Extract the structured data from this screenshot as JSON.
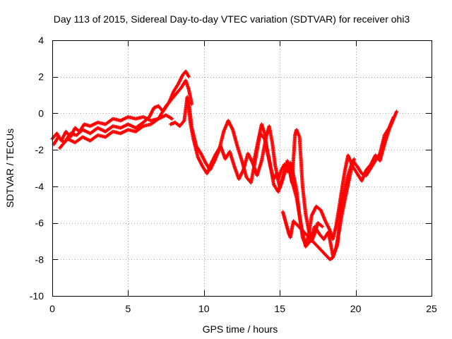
{
  "chart_data": {
    "type": "scatter",
    "title": "Day 113 of 2015, Sidereal Day-to-day VTEC variation (SDTVAR) for receiver ohi3",
    "xlabel": "GPS time / hours",
    "ylabel": "SDTVAR / TECUs",
    "xlim": [
      0,
      25
    ],
    "ylim": [
      -10,
      4
    ],
    "xticks": [
      0,
      5,
      10,
      15,
      20,
      25
    ],
    "yticks": [
      -10,
      -8,
      -6,
      -4,
      -2,
      0,
      2,
      4
    ],
    "grid": true,
    "marker": "plus",
    "color": "#ff0000",
    "tracks": [
      {
        "name": "track-1",
        "points": [
          [
            0.0,
            -1.4
          ],
          [
            0.3,
            -1.1
          ],
          [
            0.6,
            -1.5
          ],
          [
            0.9,
            -1.0
          ],
          [
            1.2,
            -1.3
          ],
          [
            1.5,
            -0.8
          ],
          [
            1.8,
            -1.0
          ],
          [
            2.1,
            -0.6
          ],
          [
            2.5,
            -0.7
          ],
          [
            3.0,
            -0.5
          ],
          [
            3.5,
            -0.6
          ],
          [
            4.0,
            -0.3
          ],
          [
            4.5,
            -0.4
          ],
          [
            5.0,
            -0.2
          ],
          [
            5.5,
            -0.3
          ],
          [
            6.0,
            -0.2
          ],
          [
            6.5,
            -0.4
          ],
          [
            7.0,
            -0.3
          ],
          [
            7.5,
            -0.1
          ],
          [
            7.9,
            -0.3
          ]
        ]
      },
      {
        "name": "track-2",
        "points": [
          [
            0.1,
            -1.7
          ],
          [
            0.4,
            -1.3
          ],
          [
            0.8,
            -1.6
          ],
          [
            1.2,
            -1.1
          ],
          [
            1.6,
            -1.2
          ],
          [
            2.0,
            -0.9
          ],
          [
            2.5,
            -1.1
          ],
          [
            3.0,
            -0.8
          ],
          [
            3.5,
            -1.0
          ],
          [
            4.0,
            -0.7
          ],
          [
            4.5,
            -0.8
          ],
          [
            5.0,
            -0.6
          ],
          [
            5.5,
            -0.8
          ],
          [
            6.0,
            -0.5
          ],
          [
            6.4,
            -0.2
          ],
          [
            6.7,
            0.3
          ],
          [
            7.0,
            0.4
          ],
          [
            7.3,
            0.1
          ],
          [
            7.7,
            0.6
          ],
          [
            8.0,
            1.2
          ],
          [
            8.3,
            1.6
          ],
          [
            8.6,
            2.1
          ],
          [
            8.8,
            2.3
          ],
          [
            9.0,
            2.0
          ]
        ]
      },
      {
        "name": "track-3",
        "points": [
          [
            0.5,
            -1.9
          ],
          [
            1.0,
            -1.4
          ],
          [
            1.5,
            -1.6
          ],
          [
            2.0,
            -1.3
          ],
          [
            2.5,
            -1.5
          ],
          [
            3.0,
            -1.2
          ],
          [
            3.5,
            -1.3
          ],
          [
            4.0,
            -1.0
          ],
          [
            4.5,
            -1.1
          ],
          [
            5.0,
            -0.9
          ],
          [
            5.5,
            -1.0
          ],
          [
            6.0,
            -0.7
          ],
          [
            6.5,
            -0.6
          ],
          [
            7.0,
            -0.3
          ],
          [
            7.5,
            0.4
          ],
          [
            8.0,
            0.9
          ],
          [
            8.5,
            1.4
          ],
          [
            8.8,
            1.8
          ],
          [
            9.0,
            1.3
          ],
          [
            9.2,
            0.5
          ]
        ]
      },
      {
        "name": "track-4",
        "points": [
          [
            7.8,
            -0.6
          ],
          [
            8.1,
            -0.5
          ],
          [
            8.4,
            -0.7
          ],
          [
            8.7,
            -0.4
          ],
          [
            8.9,
            0.9
          ],
          [
            9.1,
            -0.5
          ],
          [
            9.3,
            -1.4
          ],
          [
            9.6,
            -2.4
          ],
          [
            9.9,
            -2.9
          ],
          [
            10.2,
            -3.3
          ],
          [
            10.5,
            -2.7
          ],
          [
            10.8,
            -2.2
          ],
          [
            11.1,
            -1.8
          ],
          [
            11.4,
            -2.5
          ],
          [
            11.7,
            -2.1
          ],
          [
            12.0,
            -2.9
          ],
          [
            12.3,
            -3.6
          ],
          [
            12.6,
            -3.1
          ],
          [
            12.9,
            -2.2
          ],
          [
            13.2,
            -2.7
          ],
          [
            13.5,
            -3.4
          ],
          [
            13.8,
            -2.6
          ],
          [
            14.1,
            -1.3
          ],
          [
            14.3,
            -0.7
          ],
          [
            14.5,
            -1.6
          ],
          [
            14.7,
            -2.9
          ],
          [
            14.9,
            -3.6
          ],
          [
            15.1,
            -3.1
          ],
          [
            15.3,
            -2.8
          ],
          [
            15.5,
            -3.2
          ],
          [
            15.7,
            -2.7
          ],
          [
            15.9,
            -3.4
          ],
          [
            16.1,
            -4.2
          ],
          [
            16.3,
            -5.6
          ],
          [
            16.5,
            -6.8
          ],
          [
            16.7,
            -7.2
          ],
          [
            16.9,
            -6.7
          ],
          [
            17.1,
            -5.6
          ],
          [
            17.4,
            -5.1
          ],
          [
            17.7,
            -5.3
          ],
          [
            18.0,
            -5.9
          ],
          [
            18.3,
            -6.4
          ],
          [
            18.5,
            -6.9
          ],
          [
            18.7,
            -6.2
          ],
          [
            18.9,
            -5.2
          ],
          [
            19.1,
            -4.1
          ],
          [
            19.3,
            -3.1
          ],
          [
            19.5,
            -2.3
          ],
          [
            19.8,
            -2.9
          ],
          [
            20.1,
            -3.3
          ],
          [
            20.4,
            -3.7
          ],
          [
            20.7,
            -3.1
          ],
          [
            21.0,
            -2.8
          ],
          [
            21.3,
            -2.3
          ],
          [
            21.6,
            -2.6
          ],
          [
            21.9,
            -1.7
          ],
          [
            22.2,
            -0.9
          ],
          [
            22.5,
            -0.3
          ],
          [
            22.7,
            0.1
          ]
        ]
      },
      {
        "name": "track-5",
        "points": [
          [
            9.0,
            0.6
          ],
          [
            9.2,
            -0.8
          ],
          [
            9.5,
            -1.8
          ],
          [
            9.8,
            -2.2
          ],
          [
            10.1,
            -2.7
          ],
          [
            10.4,
            -3.1
          ],
          [
            10.7,
            -2.6
          ],
          [
            11.0,
            -2.0
          ],
          [
            11.3,
            -1.0
          ],
          [
            11.6,
            -0.4
          ],
          [
            11.9,
            -0.9
          ],
          [
            12.2,
            -1.8
          ],
          [
            12.5,
            -2.6
          ],
          [
            12.8,
            -3.5
          ],
          [
            13.1,
            -3.8
          ],
          [
            13.4,
            -2.5
          ],
          [
            13.7,
            -1.1
          ],
          [
            14.0,
            -1.4
          ],
          [
            14.3,
            -2.5
          ],
          [
            14.6,
            -3.9
          ],
          [
            14.9,
            -4.3
          ],
          [
            15.2,
            -3.5
          ],
          [
            15.5,
            -2.6
          ],
          [
            15.8,
            -3.7
          ],
          [
            16.1,
            -4.6
          ],
          [
            16.4,
            -6.1
          ],
          [
            16.7,
            -7.3
          ],
          [
            17.0,
            -7.0
          ],
          [
            17.3,
            -6.2
          ],
          [
            17.6,
            -6.6
          ],
          [
            17.9,
            -6.9
          ],
          [
            18.2,
            -6.5
          ],
          [
            18.5,
            -7.8
          ],
          [
            18.8,
            -7.2
          ],
          [
            19.0,
            -5.4
          ],
          [
            19.2,
            -4.4
          ],
          [
            19.5,
            -3.4
          ],
          [
            19.8,
            -2.6
          ],
          [
            20.1,
            -2.9
          ],
          [
            20.4,
            -3.3
          ],
          [
            20.7,
            -3.4
          ],
          [
            21.0,
            -3.0
          ],
          [
            21.3,
            -2.6
          ],
          [
            21.6,
            -2.2
          ],
          [
            21.9,
            -1.2
          ],
          [
            22.2,
            -0.8
          ],
          [
            22.5,
            -0.2
          ]
        ]
      },
      {
        "name": "track-6",
        "points": [
          [
            13.3,
            -2.6
          ],
          [
            13.6,
            -1.4
          ],
          [
            13.8,
            -0.6
          ],
          [
            14.0,
            -1.1
          ],
          [
            14.2,
            -2.2
          ],
          [
            14.4,
            -3.0
          ],
          [
            14.6,
            -3.6
          ],
          [
            14.8,
            -3.3
          ],
          [
            15.0,
            -4.1
          ],
          [
            15.2,
            -3.6
          ],
          [
            15.4,
            -3.0
          ],
          [
            15.6,
            -2.9
          ],
          [
            15.8,
            -3.8
          ],
          [
            16.0,
            -1.2
          ],
          [
            16.1,
            -0.9
          ],
          [
            16.3,
            -1.3
          ],
          [
            16.5,
            -4.0
          ],
          [
            16.7,
            -5.5
          ],
          [
            16.9,
            -6.4
          ],
          [
            17.1,
            -7.0
          ],
          [
            17.3,
            -6.6
          ],
          [
            17.5,
            -6.0
          ],
          [
            17.8,
            -6.2
          ]
        ]
      },
      {
        "name": "track-7",
        "points": [
          [
            15.2,
            -5.4
          ],
          [
            15.3,
            -5.7
          ],
          [
            15.4,
            -6.0
          ],
          [
            15.5,
            -6.3
          ],
          [
            15.6,
            -6.6
          ],
          [
            15.7,
            -6.8
          ],
          [
            15.8,
            -6.3
          ],
          [
            15.9,
            -5.9
          ],
          [
            18.3,
            -8.0
          ],
          [
            18.5,
            -7.9
          ],
          [
            18.7,
            -7.4
          ],
          [
            18.9,
            -6.5
          ],
          [
            19.1,
            -5.5
          ],
          [
            19.3,
            -4.7
          ],
          [
            19.5,
            -3.9
          ],
          [
            19.7,
            -3.1
          ],
          [
            19.9,
            -2.5
          ]
        ]
      }
    ]
  }
}
